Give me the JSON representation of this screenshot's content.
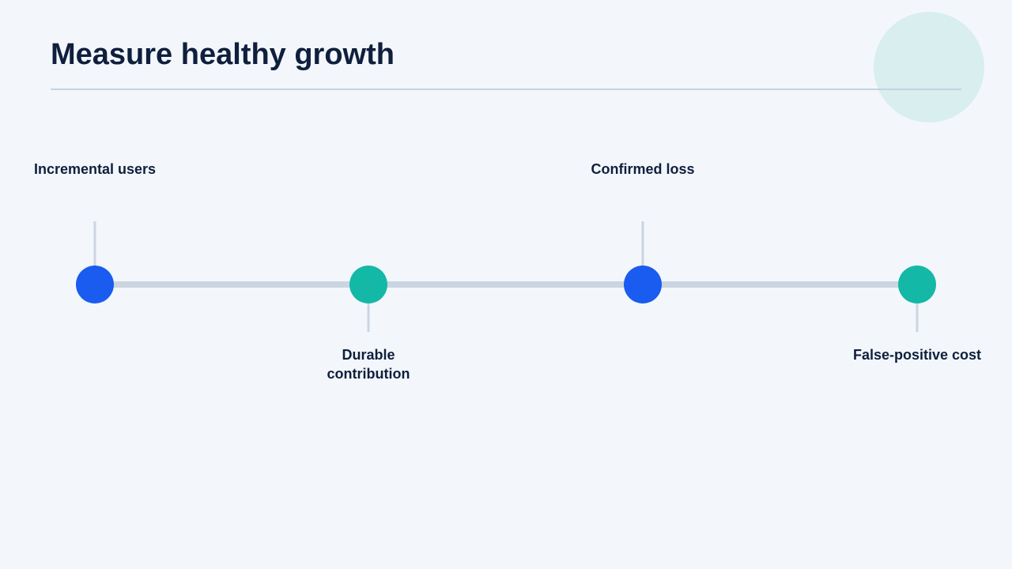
{
  "header": {
    "title": "Measure healthy growth"
  },
  "nodes": [
    {
      "label": "Incremental users"
    },
    {
      "label": "Durable contribution"
    },
    {
      "label": "Confirmed loss"
    },
    {
      "label": "False-positive cost"
    }
  ]
}
